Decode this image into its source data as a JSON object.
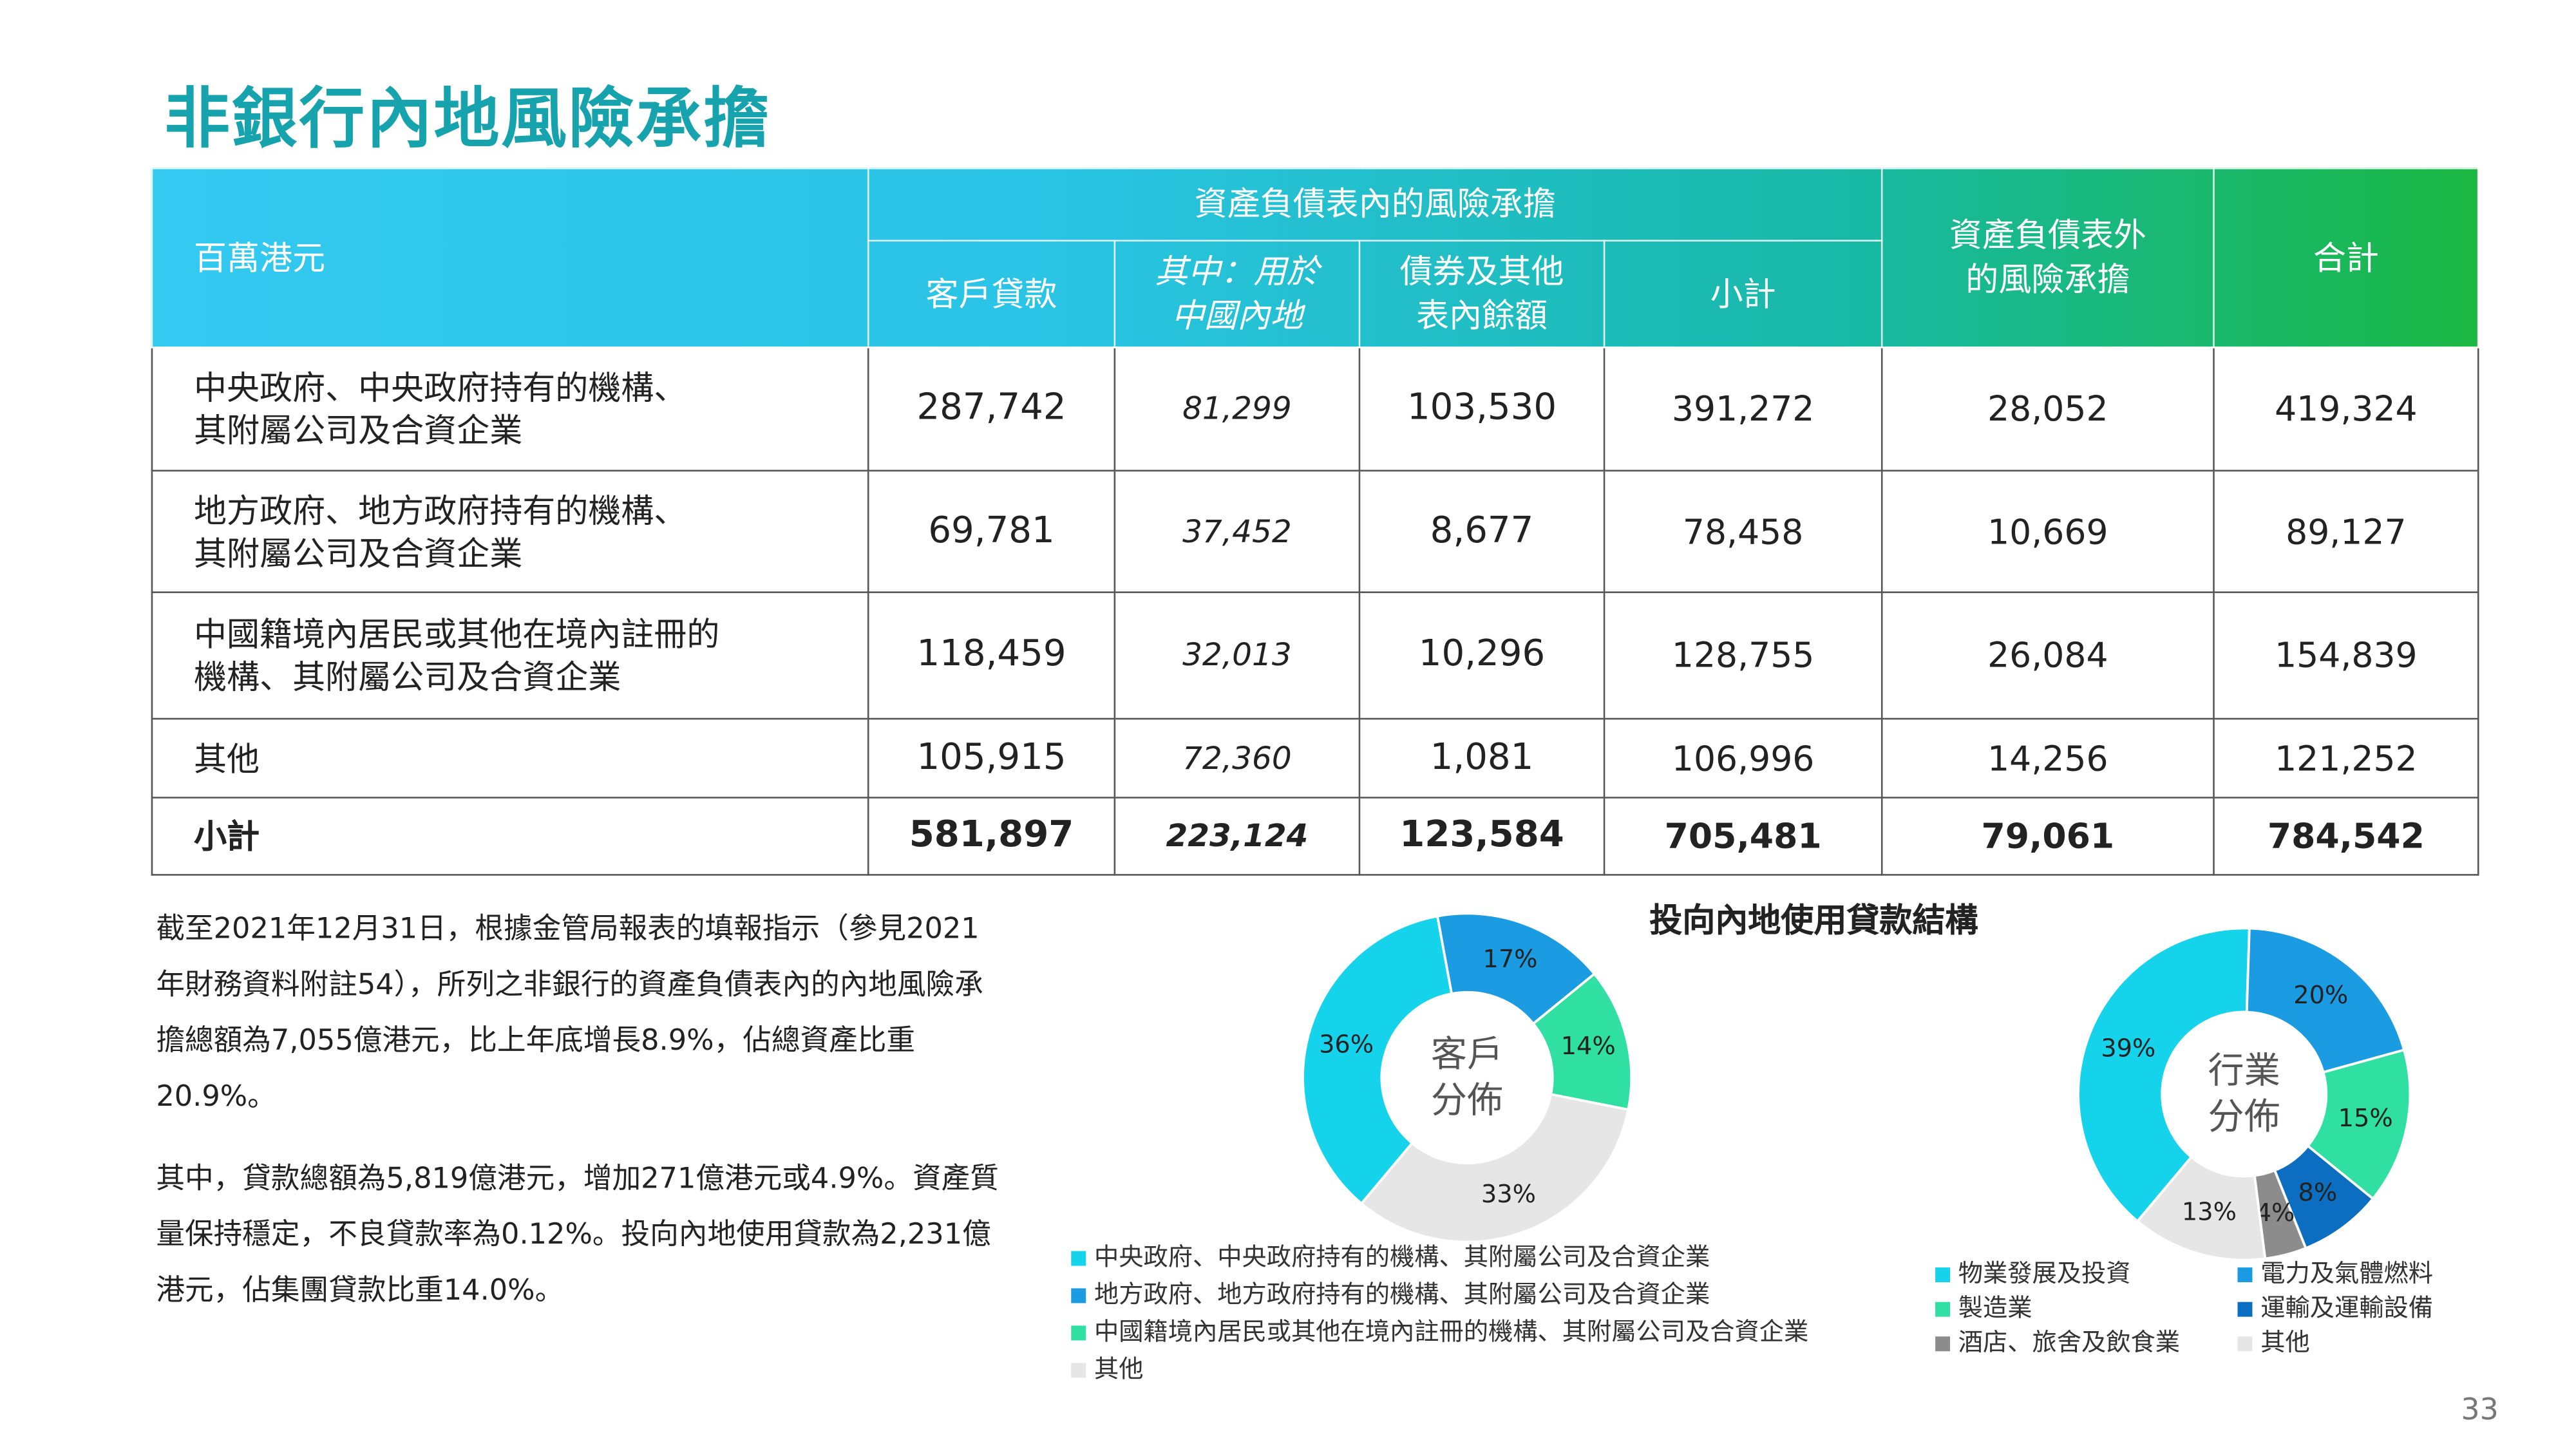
{
  "title": "非銀行內地風險承擔",
  "table": {
    "header": {
      "unit": "百萬港元",
      "on_balance": "資產負債表內的風險承擔",
      "sub": [
        "客戶貸款",
        "其中：用於\n中國內地",
        "債券及其他\n表內餘額",
        "小計"
      ],
      "off_balance": "資產負債表外\n的風險承擔",
      "total": "合計"
    },
    "rows": [
      {
        "label": "中央政府、中央政府持有的機構、\n其附屬公司及合資企業",
        "cells": [
          "287,742",
          "81,299",
          "103,530",
          "391,272",
          "28,052",
          "419,324"
        ]
      },
      {
        "label": "地方政府、地方政府持有的機構、\n其附屬公司及合資企業",
        "cells": [
          "69,781",
          "37,452",
          "8,677",
          "78,458",
          "10,669",
          "89,127"
        ]
      },
      {
        "label": "中國籍境內居民或其他在境內註冊的\n機構、其附屬公司及合資企業",
        "cells": [
          "118,459",
          "32,013",
          "10,296",
          "128,755",
          "26,084",
          "154,839"
        ]
      },
      {
        "label": "其他",
        "cells": [
          "105,915",
          "72,360",
          "1,081",
          "106,996",
          "14,256",
          "121,252"
        ]
      },
      {
        "label": "小計",
        "cells": [
          "581,897",
          "223,124",
          "123,584",
          "705,481",
          "79,061",
          "784,542"
        ]
      }
    ]
  },
  "notes": [
    "截至2021年12月31日，根據金管局報表的填報指示（參見2021年財務資料附註54），所列之非銀行的資產負債表內的內地風險承擔總額為7,055億港元，比上年底增長8.9%，佔總資產比重20.9%。",
    "其中，貸款總額為5,819億港元，增加271億港元或4.9%。資產質量保持穩定，不良貸款率為0.12%。投向內地使用貸款為2,231億港元，佔集團貸款比重14.0%。"
  ],
  "chart_heading": "投向內地使用貸款結構",
  "chart_data": [
    {
      "type": "pie",
      "center_label": [
        "客戶",
        "分佈"
      ],
      "categories": [
        "中央政府、中央政府持有的機構、其附屬公司及合資企業",
        "地方政府、地方政府持有的機構、其附屬公司及合資企業",
        "中國籍境內居民或其他在境內註冊的機構、其附屬公司及合資企業",
        "其他"
      ],
      "values": [
        36,
        17,
        14,
        33
      ],
      "value_labels": [
        "36%",
        "17%",
        "14%",
        "33%"
      ],
      "colors": [
        "#16d3ec",
        "#1a9be2",
        "#2fe0a2",
        "#e6e6e6"
      ]
    },
    {
      "type": "pie",
      "center_label": [
        "行業",
        "分佈"
      ],
      "categories": [
        "物業發展及投資",
        "電力及氣體燃料",
        "製造業",
        "運輸及運輸設備",
        "酒店、旅舍及飲食業",
        "其他"
      ],
      "values": [
        39,
        20,
        15,
        8,
        4,
        13
      ],
      "value_labels": [
        "39%",
        "20%",
        "15%",
        "8%",
        "4%",
        "13%"
      ],
      "colors": [
        "#16d3ec",
        "#1a9be2",
        "#2fe0a2",
        "#0c6ec0",
        "#8c8c8c",
        "#e6e6e6"
      ]
    }
  ],
  "page_number": "33"
}
